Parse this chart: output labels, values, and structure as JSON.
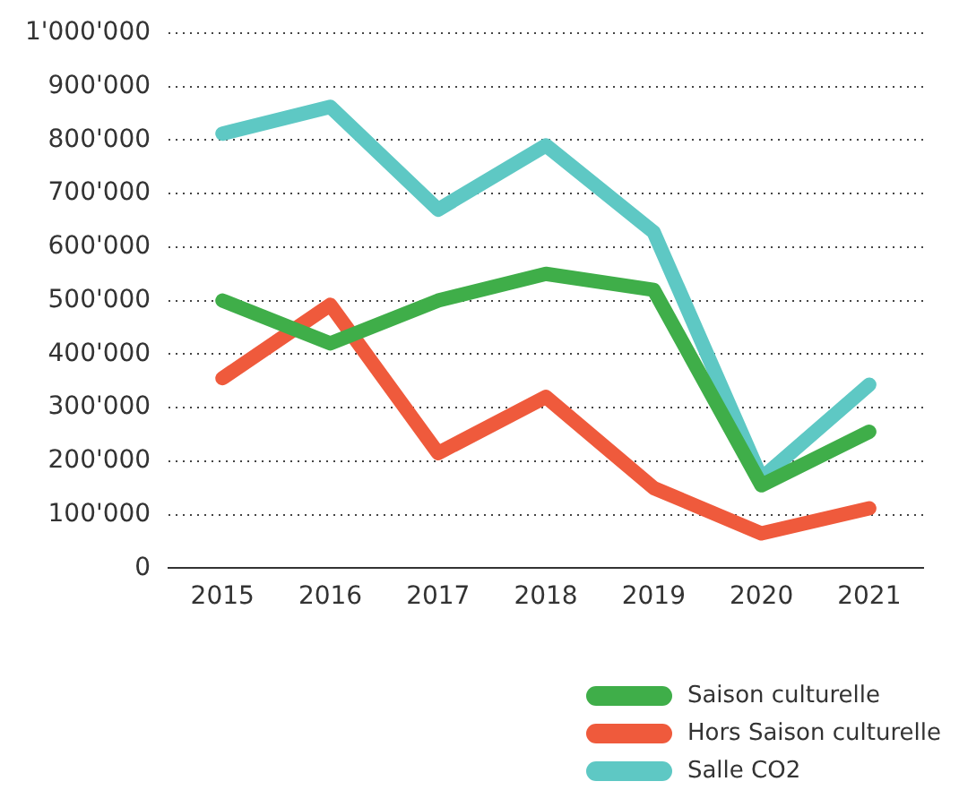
{
  "chart_data": {
    "type": "line",
    "categories": [
      "2015",
      "2016",
      "2017",
      "2018",
      "2019",
      "2020",
      "2021"
    ],
    "series": [
      {
        "name": "Saison culturelle",
        "color": "#3fae49",
        "values": [
          500000,
          420000,
          500000,
          550000,
          520000,
          155000,
          255000
        ]
      },
      {
        "name": "Hors Saison culturelle",
        "color": "#ef5a3c",
        "values": [
          355000,
          492000,
          215000,
          320000,
          150000,
          65000,
          112000
        ]
      },
      {
        "name": "Salle CO2",
        "color": "#5ec8c4",
        "values": [
          812000,
          862000,
          670000,
          790000,
          628000,
          168000,
          343000
        ]
      }
    ],
    "ylim": [
      0,
      1000000
    ],
    "yticks": [
      0,
      {
        "value": 100000,
        "label": "100'000"
      },
      {
        "value": 200000,
        "label": "200'000"
      },
      {
        "value": 300000,
        "label": "300'000"
      },
      {
        "value": 400000,
        "label": "400'000"
      },
      {
        "value": 500000,
        "label": "500'000"
      },
      {
        "value": 600000,
        "label": "600'000"
      },
      {
        "value": 700000,
        "label": "700'000"
      },
      {
        "value": 800000,
        "label": "800'000"
      },
      {
        "value": 900000,
        "label": "900'000"
      },
      {
        "value": 1000000,
        "label": "1'000'000"
      }
    ],
    "grid": "y",
    "legend": "bottom right",
    "marker": "none",
    "line_style": "solid"
  }
}
